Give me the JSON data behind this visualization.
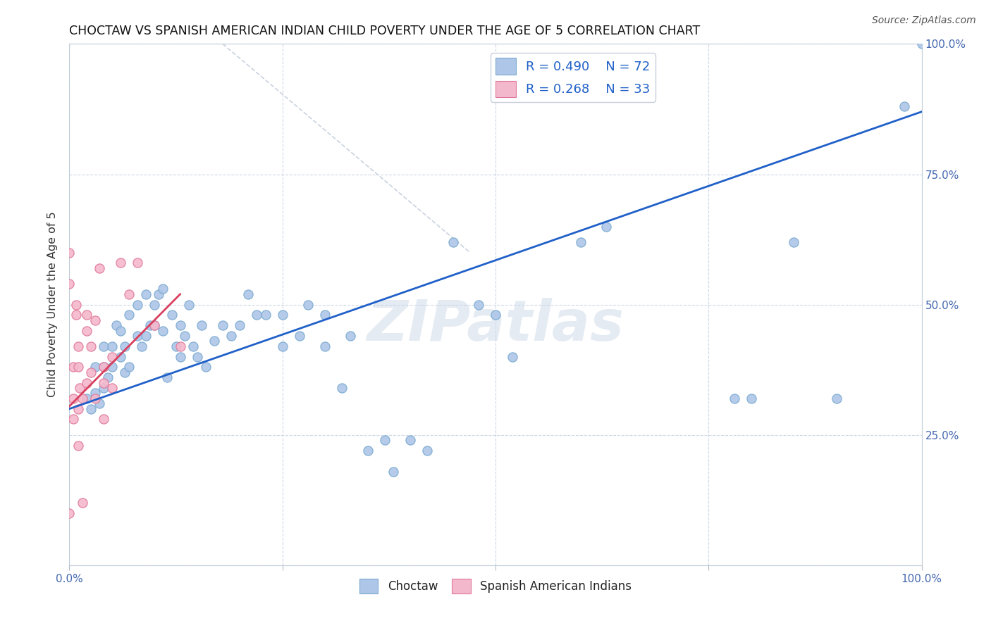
{
  "title": "CHOCTAW VS SPANISH AMERICAN INDIAN CHILD POVERTY UNDER THE AGE OF 5 CORRELATION CHART",
  "source": "Source: ZipAtlas.com",
  "ylabel": "Child Poverty Under the Age of 5",
  "xlim": [
    0,
    1
  ],
  "ylim": [
    0,
    1
  ],
  "choctaw_color": "#aec6e8",
  "choctaw_edge_color": "#7aaad0",
  "spanish_color": "#f4b8cc",
  "spanish_edge_color": "#e07898",
  "blue_line_color": "#2060c8",
  "pink_line_color": "#d84060",
  "dashed_line_color": "#b8c4d4",
  "watermark_text": "ZIPatlas",
  "watermark_color": "#ccd8e8",
  "choctaw_x": [
    0.02,
    0.025,
    0.03,
    0.03,
    0.035,
    0.04,
    0.04,
    0.04,
    0.045,
    0.05,
    0.05,
    0.055,
    0.06,
    0.06,
    0.065,
    0.065,
    0.07,
    0.07,
    0.08,
    0.08,
    0.085,
    0.09,
    0.09,
    0.095,
    0.1,
    0.1,
    0.105,
    0.11,
    0.11,
    0.115,
    0.12,
    0.125,
    0.13,
    0.13,
    0.135,
    0.14,
    0.145,
    0.15,
    0.155,
    0.16,
    0.17,
    0.18,
    0.19,
    0.2,
    0.21,
    0.22,
    0.23,
    0.25,
    0.25,
    0.27,
    0.28,
    0.3,
    0.3,
    0.32,
    0.33,
    0.35,
    0.37,
    0.38,
    0.4,
    0.42,
    0.45,
    0.48,
    0.5,
    0.52,
    0.6,
    0.63,
    0.78,
    0.8,
    0.85,
    0.9,
    0.98,
    1.0
  ],
  "choctaw_y": [
    0.32,
    0.3,
    0.33,
    0.38,
    0.31,
    0.34,
    0.38,
    0.42,
    0.36,
    0.38,
    0.42,
    0.46,
    0.4,
    0.45,
    0.37,
    0.42,
    0.38,
    0.48,
    0.44,
    0.5,
    0.42,
    0.44,
    0.52,
    0.46,
    0.46,
    0.5,
    0.52,
    0.45,
    0.53,
    0.36,
    0.48,
    0.42,
    0.4,
    0.46,
    0.44,
    0.5,
    0.42,
    0.4,
    0.46,
    0.38,
    0.43,
    0.46,
    0.44,
    0.46,
    0.52,
    0.48,
    0.48,
    0.42,
    0.48,
    0.44,
    0.5,
    0.42,
    0.48,
    0.34,
    0.44,
    0.22,
    0.24,
    0.18,
    0.24,
    0.22,
    0.62,
    0.5,
    0.48,
    0.4,
    0.62,
    0.65,
    0.32,
    0.32,
    0.62,
    0.32,
    0.88,
    1.0
  ],
  "spanish_x": [
    0.0,
    0.0,
    0.0,
    0.005,
    0.005,
    0.005,
    0.008,
    0.008,
    0.01,
    0.01,
    0.01,
    0.01,
    0.012,
    0.015,
    0.015,
    0.02,
    0.02,
    0.02,
    0.025,
    0.025,
    0.03,
    0.03,
    0.035,
    0.04,
    0.04,
    0.04,
    0.05,
    0.05,
    0.06,
    0.07,
    0.08,
    0.1,
    0.13
  ],
  "spanish_y": [
    0.6,
    0.54,
    0.1,
    0.32,
    0.38,
    0.28,
    0.5,
    0.48,
    0.42,
    0.38,
    0.3,
    0.23,
    0.34,
    0.32,
    0.12,
    0.48,
    0.45,
    0.35,
    0.42,
    0.37,
    0.47,
    0.32,
    0.57,
    0.38,
    0.35,
    0.28,
    0.4,
    0.34,
    0.58,
    0.52,
    0.58,
    0.46,
    0.42
  ],
  "blue_trendline_x": [
    0.0,
    1.0
  ],
  "blue_trendline_y": [
    0.3,
    0.87
  ],
  "pink_trendline_x": [
    0.0,
    0.13
  ],
  "pink_trendline_y": [
    0.305,
    0.52
  ],
  "diag_line_x": [
    0.18,
    0.47
  ],
  "diag_line_y": [
    1.0,
    0.6
  ],
  "xtick_positions": [
    0.0,
    0.25,
    0.5,
    0.75,
    1.0
  ],
  "xtick_show_labels": [
    true,
    false,
    false,
    false,
    true
  ],
  "ytick_right_positions": [
    0.0,
    0.25,
    0.5,
    0.75,
    1.0
  ],
  "ytick_right_labels": [
    "",
    "25.0%",
    "50.0%",
    "75.0%",
    "100.0%"
  ]
}
